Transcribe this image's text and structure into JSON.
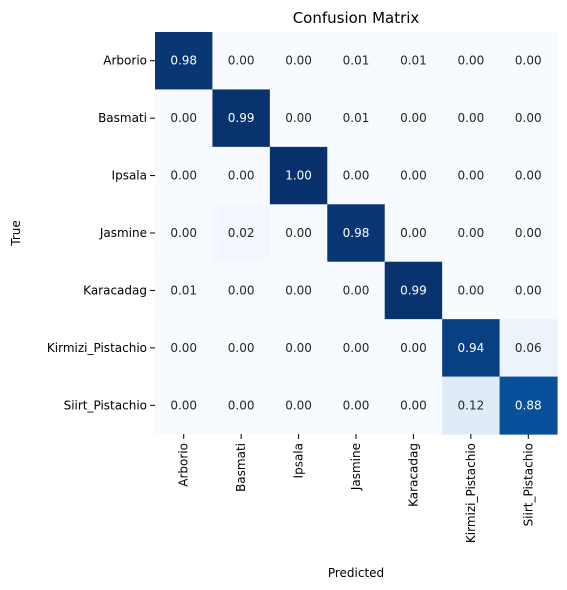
{
  "chart_data": {
    "type": "heatmap",
    "title": "Confusion Matrix",
    "xlabel": "Predicted",
    "ylabel": "True",
    "x_categories": [
      "Arborio",
      "Basmati",
      "Ipsala",
      "Jasmine",
      "Karacadag",
      "Kirmizi_Pistachio",
      "Siirt_Pistachio"
    ],
    "y_categories": [
      "Arborio",
      "Basmati",
      "Ipsala",
      "Jasmine",
      "Karacadag",
      "Kirmizi_Pistachio",
      "Siirt_Pistachio"
    ],
    "values": [
      [
        "0.98",
        "0.00",
        "0.00",
        "0.01",
        "0.01",
        "0.00",
        "0.00"
      ],
      [
        "0.00",
        "0.99",
        "0.00",
        "0.01",
        "0.00",
        "0.00",
        "0.00"
      ],
      [
        "0.00",
        "0.00",
        "1.00",
        "0.00",
        "0.00",
        "0.00",
        "0.00"
      ],
      [
        "0.00",
        "0.02",
        "0.00",
        "0.98",
        "0.00",
        "0.00",
        "0.00"
      ],
      [
        "0.01",
        "0.00",
        "0.00",
        "0.00",
        "0.99",
        "0.00",
        "0.00"
      ],
      [
        "0.00",
        "0.00",
        "0.00",
        "0.00",
        "0.00",
        "0.94",
        "0.06"
      ],
      [
        "0.00",
        "0.00",
        "0.00",
        "0.00",
        "0.00",
        "0.12",
        "0.88"
      ]
    ],
    "colormap": "Blues",
    "value_range": [
      0,
      1
    ],
    "colorbar": false
  }
}
